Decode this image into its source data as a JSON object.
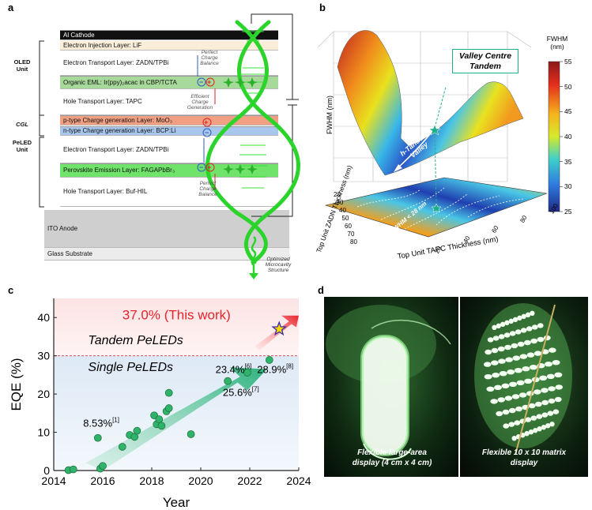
{
  "panels": {
    "a": "a",
    "b": "b",
    "c": "c",
    "d": "d"
  },
  "panel_a": {
    "layers": [
      {
        "text": "Al Cathode",
        "bg": "#111111",
        "fg": "#ffffff"
      },
      {
        "text": "Electron Injection Layer: LiF",
        "bg": "#fbeed9",
        "fg": "#111111"
      },
      {
        "text": "Electron Transport Layer: ZADN/TPBi",
        "bg": "#ffffff",
        "fg": "#111111"
      },
      {
        "text": "Organic EML: Ir(ppy)₂acac in CBP/TCTA",
        "bg": "#a7d99a",
        "fg": "#111111"
      },
      {
        "text": "Hole Transport Layer: TAPC",
        "bg": "#ffffff",
        "fg": "#111111"
      },
      {
        "text": "p-type Charge generation Layer: MoO₃",
        "bg": "#f2a083",
        "fg": "#111111"
      },
      {
        "text": "n-type Charge generation Layer: BCP:Li",
        "bg": "#a9c7ee",
        "fg": "#111111"
      },
      {
        "text": "Electron Transport Layer: ZADN/TPBi",
        "bg": "#ffffff",
        "fg": "#111111"
      },
      {
        "text": "Perovskite Emission Layer: FAGAPbBr₃",
        "bg": "#6fe36a",
        "fg": "#111111"
      },
      {
        "text": "Hole Transport Layer: Buf-HIL",
        "bg": "#ffffff",
        "fg": "#111111"
      },
      {
        "text": "ITO Anode",
        "bg": "#cfcfcf",
        "fg": "#111111"
      },
      {
        "text": "Glass Substrate",
        "bg": "#ececec",
        "fg": "#111111"
      }
    ],
    "unit_labels": {
      "oled": "OLED\nUnit",
      "cgl": "CGL",
      "peled": "PeLED\nUnit"
    },
    "notes": {
      "balance_top": "Perfect\nCharge\nBalance",
      "generation": "Efficient\nCharge\nGeneration",
      "balance_bottom": "Perfect\nCharge\nBalance",
      "microcavity": "Optimized\nMicrocavity\nStructure"
    }
  },
  "panel_b": {
    "zlabel": "FWHM (nm)",
    "ylabel": "Top Unit ZADN Thickness (nm)",
    "xlabel": "Top Unit TAPC Thickness (nm)",
    "colorbar_title": "FWHM\n(nm)",
    "colorbar_ticks": [
      "55",
      "50",
      "45",
      "40",
      "35",
      "30",
      "25"
    ],
    "y_ticks": [
      "20",
      "30",
      "40",
      "50",
      "60",
      "70",
      "80"
    ],
    "x_ticks": [
      "20",
      "40",
      "60",
      "80",
      "100"
    ],
    "callout": "Valley Centre\nTandem",
    "valley_label": "h-Tandem\nValley",
    "fwhm_label": "FWHM < 28 nm",
    "accent": "#1fae8a"
  },
  "panel_c": {
    "chart_data": {
      "type": "scatter",
      "xlabel": "Year",
      "ylabel": "EQE (%)",
      "xlim": [
        2014,
        2024
      ],
      "ylim": [
        0,
        45
      ],
      "x_ticks": [
        "2014",
        "2016",
        "2018",
        "2020",
        "2022",
        "2024"
      ],
      "y_ticks": [
        "0",
        "10",
        "20",
        "30",
        "40"
      ],
      "threshold": 30,
      "series": [
        {
          "values": [
            {
              "x": 2014.6,
              "y": 0.1
            },
            {
              "x": 2014.8,
              "y": 0.3
            },
            {
              "x": 2015.8,
              "y": 8.53
            },
            {
              "x": 2015.9,
              "y": 0.5
            },
            {
              "x": 2016.0,
              "y": 1.2
            },
            {
              "x": 2016.8,
              "y": 6.2
            },
            {
              "x": 2017.1,
              "y": 9.3
            },
            {
              "x": 2017.3,
              "y": 8.8
            },
            {
              "x": 2017.4,
              "y": 10.4
            },
            {
              "x": 2018.1,
              "y": 14.4
            },
            {
              "x": 2018.2,
              "y": 12.1
            },
            {
              "x": 2018.3,
              "y": 13.4
            },
            {
              "x": 2018.4,
              "y": 11.7
            },
            {
              "x": 2018.6,
              "y": 15.5
            },
            {
              "x": 2018.7,
              "y": 16.3
            },
            {
              "x": 2018.7,
              "y": 20.3
            },
            {
              "x": 2019.6,
              "y": 9.5
            },
            {
              "x": 2021.1,
              "y": 23.4
            },
            {
              "x": 2021.9,
              "y": 25.6
            },
            {
              "x": 2022.8,
              "y": 28.9
            }
          ]
        }
      ],
      "highlight": {
        "x": 2023.2,
        "y": 37.0
      }
    },
    "headline": "37.0% (This work)",
    "tandem_label": "Tandem PeLEDs",
    "single_label": "Single PeLEDs",
    "annotations": [
      {
        "text": "8.53%",
        "ref": "[1]"
      },
      {
        "text": "23.4%",
        "ref": "[6]"
      },
      {
        "text": "28.9%",
        "ref": "[8]"
      },
      {
        "text": "25.6%",
        "ref": "[7]"
      }
    ],
    "colors": {
      "point": "#2fb36a",
      "headline": "#e8232a",
      "arrow": "#3cba8a",
      "star": "#f5d800"
    }
  },
  "panel_d": {
    "left_caption": "Flexible large-area\ndisplay (4 cm x 4 cm)",
    "right_caption": "Flexible 10 x 10 matrix\ndisplay"
  }
}
